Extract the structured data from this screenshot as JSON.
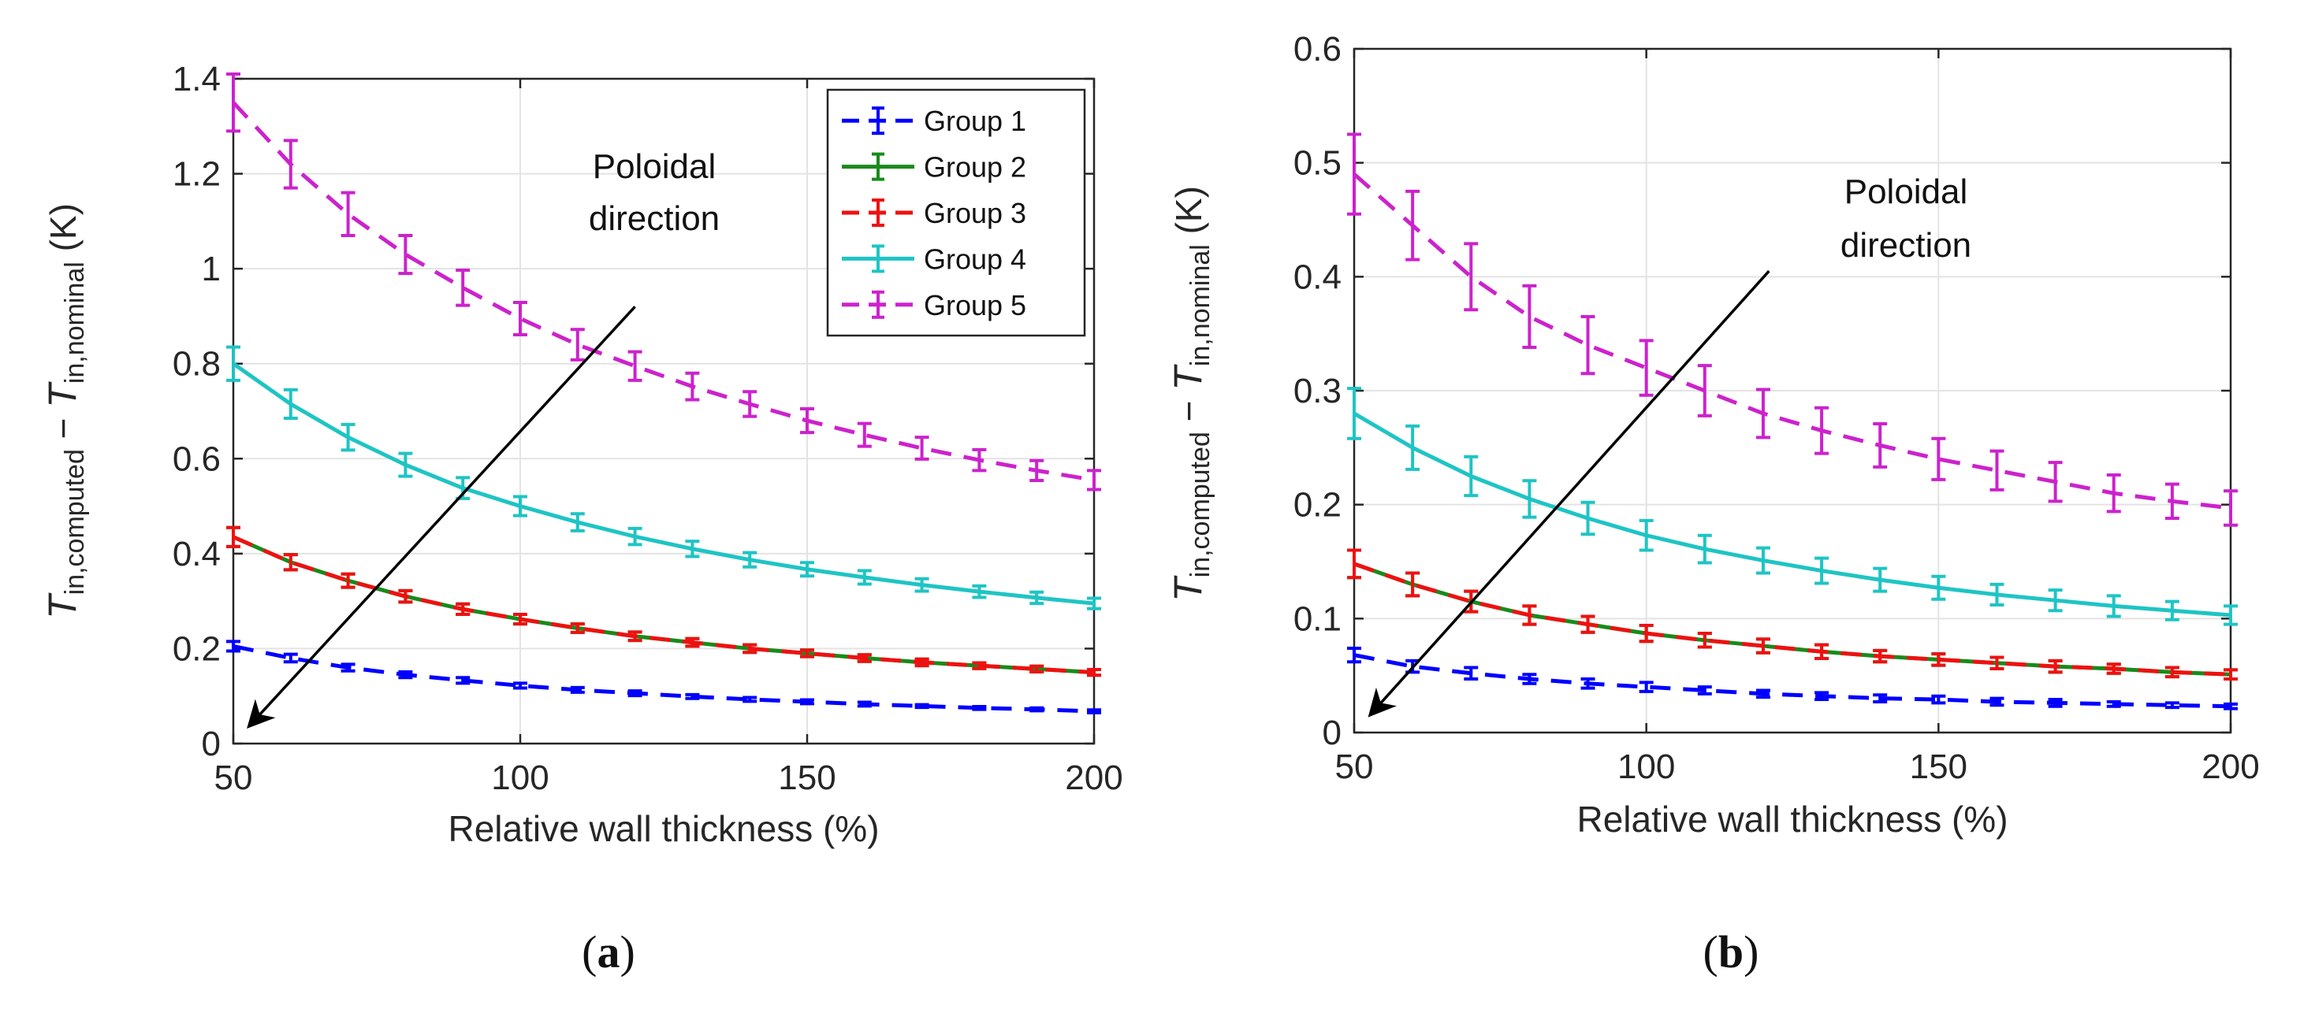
{
  "chart_data": [
    {
      "panel": "a",
      "type": "line",
      "caption_open": "(",
      "caption_letter": "a",
      "caption_close": ")",
      "xlabel": "Relative wall thickness (%)",
      "ylabel": {
        "symbol": "T",
        "sub1": "in,computed",
        "minus": " − ",
        "symbol2": "T",
        "sub2": "in,nominal",
        "unit": " (K)"
      },
      "xlim": [
        50,
        200
      ],
      "ylim": [
        0,
        1.4
      ],
      "xticks": [
        50,
        100,
        150,
        200
      ],
      "xtick_labels": [
        "50",
        "100",
        "150",
        "200"
      ],
      "yticks": [
        0,
        0.2,
        0.4,
        0.6,
        0.8,
        1,
        1.2,
        1.4
      ],
      "ytick_labels": [
        "0",
        "0.2",
        "0.4",
        "0.6",
        "0.8",
        "1",
        "1.2",
        "1.4"
      ],
      "grid": true,
      "legend_position": "top-right",
      "annotation": {
        "line1": "Poloidal",
        "line2": "direction"
      },
      "arrow": {
        "from": [
          120,
          0.92
        ],
        "to": [
          53,
          0.04
        ]
      },
      "x": [
        50,
        60,
        70,
        80,
        90,
        100,
        110,
        120,
        130,
        140,
        150,
        160,
        170,
        180,
        190,
        200
      ],
      "series": [
        {
          "name": "Group 1",
          "color": "#0000ff",
          "dash": true,
          "values": [
            0.205,
            0.18,
            0.16,
            0.145,
            0.133,
            0.122,
            0.113,
            0.106,
            0.099,
            0.093,
            0.088,
            0.083,
            0.079,
            0.075,
            0.072,
            0.068
          ],
          "err": [
            0.01,
            0.008,
            0.007,
            0.006,
            0.006,
            0.005,
            0.005,
            0.005,
            0.004,
            0.004,
            0.004,
            0.004,
            0.003,
            0.003,
            0.003,
            0.003
          ]
        },
        {
          "name": "Group 2",
          "color": "#1a8a1a",
          "dash": false,
          "values": [
            0.435,
            0.382,
            0.343,
            0.31,
            0.283,
            0.262,
            0.243,
            0.226,
            0.213,
            0.2,
            0.19,
            0.18,
            0.171,
            0.164,
            0.157,
            0.15
          ],
          "err": [
            0.02,
            0.016,
            0.014,
            0.012,
            0.011,
            0.01,
            0.009,
            0.009,
            0.008,
            0.008,
            0.007,
            0.007,
            0.007,
            0.006,
            0.006,
            0.006
          ]
        },
        {
          "name": "Group 3",
          "color": "#ee1111",
          "dash": true,
          "values": [
            0.435,
            0.382,
            0.343,
            0.31,
            0.283,
            0.262,
            0.243,
            0.226,
            0.213,
            0.2,
            0.19,
            0.18,
            0.171,
            0.164,
            0.157,
            0.15
          ],
          "err": [
            0.02,
            0.016,
            0.014,
            0.012,
            0.011,
            0.01,
            0.009,
            0.009,
            0.008,
            0.008,
            0.007,
            0.007,
            0.007,
            0.006,
            0.006,
            0.006
          ]
        },
        {
          "name": "Group 4",
          "color": "#1fc4c4",
          "dash": false,
          "values": [
            0.8,
            0.715,
            0.645,
            0.587,
            0.538,
            0.5,
            0.466,
            0.436,
            0.41,
            0.387,
            0.367,
            0.35,
            0.334,
            0.32,
            0.307,
            0.295
          ],
          "err": [
            0.035,
            0.03,
            0.027,
            0.024,
            0.022,
            0.02,
            0.018,
            0.017,
            0.016,
            0.015,
            0.014,
            0.014,
            0.013,
            0.012,
            0.012,
            0.011
          ]
        },
        {
          "name": "Group 5",
          "color": "#cc22cc",
          "dash": true,
          "values": [
            1.35,
            1.22,
            1.115,
            1.03,
            0.96,
            0.895,
            0.84,
            0.795,
            0.752,
            0.715,
            0.68,
            0.65,
            0.622,
            0.597,
            0.575,
            0.555
          ],
          "err": [
            0.06,
            0.05,
            0.045,
            0.04,
            0.037,
            0.034,
            0.032,
            0.03,
            0.028,
            0.026,
            0.025,
            0.024,
            0.023,
            0.022,
            0.021,
            0.02
          ]
        }
      ]
    },
    {
      "panel": "b",
      "type": "line",
      "caption_open": "(",
      "caption_letter": "b",
      "caption_close": ")",
      "xlabel": "Relative wall thickness (%)",
      "ylabel": {
        "symbol": "T",
        "sub1": "in,computed",
        "minus": " − ",
        "symbol2": "T",
        "sub2": "in,nominal",
        "unit": " (K)"
      },
      "xlim": [
        50,
        200
      ],
      "ylim": [
        0,
        0.6
      ],
      "xticks": [
        50,
        100,
        150,
        200
      ],
      "xtick_labels": [
        "50",
        "100",
        "150",
        "200"
      ],
      "yticks": [
        0,
        0.1,
        0.2,
        0.3,
        0.4,
        0.5,
        0.6
      ],
      "ytick_labels": [
        "0",
        "0.1",
        "0.2",
        "0.3",
        "0.4",
        "0.5",
        "0.6"
      ],
      "grid": true,
      "legend_position": "none",
      "annotation": {
        "line1": "Poloidal",
        "line2": "direction"
      },
      "arrow": {
        "from": [
          121,
          0.405
        ],
        "to": [
          53,
          0.017
        ]
      },
      "x": [
        50,
        60,
        70,
        80,
        90,
        100,
        110,
        120,
        130,
        140,
        150,
        160,
        170,
        180,
        190,
        200
      ],
      "series": [
        {
          "name": "Group 1",
          "color": "#0000ff",
          "dash": true,
          "values": [
            0.068,
            0.058,
            0.052,
            0.047,
            0.043,
            0.04,
            0.037,
            0.034,
            0.032,
            0.03,
            0.029,
            0.027,
            0.026,
            0.025,
            0.024,
            0.023
          ],
          "err": [
            0.006,
            0.005,
            0.005,
            0.004,
            0.004,
            0.004,
            0.003,
            0.003,
            0.003,
            0.003,
            0.003,
            0.003,
            0.003,
            0.002,
            0.002,
            0.002
          ]
        },
        {
          "name": "Group 2",
          "color": "#1a8a1a",
          "dash": false,
          "values": [
            0.148,
            0.13,
            0.115,
            0.103,
            0.095,
            0.087,
            0.081,
            0.076,
            0.071,
            0.067,
            0.064,
            0.061,
            0.058,
            0.056,
            0.053,
            0.051
          ],
          "err": [
            0.012,
            0.01,
            0.009,
            0.008,
            0.007,
            0.007,
            0.006,
            0.006,
            0.006,
            0.005,
            0.005,
            0.005,
            0.005,
            0.004,
            0.004,
            0.004
          ]
        },
        {
          "name": "Group 3",
          "color": "#ee1111",
          "dash": true,
          "values": [
            0.148,
            0.13,
            0.115,
            0.103,
            0.095,
            0.087,
            0.081,
            0.076,
            0.071,
            0.067,
            0.064,
            0.061,
            0.058,
            0.056,
            0.053,
            0.051
          ],
          "err": [
            0.012,
            0.01,
            0.009,
            0.008,
            0.007,
            0.007,
            0.006,
            0.006,
            0.006,
            0.005,
            0.005,
            0.005,
            0.005,
            0.004,
            0.004,
            0.004
          ]
        },
        {
          "name": "Group 4",
          "color": "#1fc4c4",
          "dash": false,
          "values": [
            0.28,
            0.25,
            0.225,
            0.205,
            0.188,
            0.173,
            0.161,
            0.151,
            0.142,
            0.134,
            0.127,
            0.121,
            0.116,
            0.111,
            0.107,
            0.103
          ],
          "err": [
            0.022,
            0.019,
            0.017,
            0.016,
            0.014,
            0.013,
            0.012,
            0.011,
            0.011,
            0.01,
            0.01,
            0.009,
            0.009,
            0.009,
            0.008,
            0.008
          ]
        },
        {
          "name": "Group 5",
          "color": "#cc22cc",
          "dash": true,
          "values": [
            0.49,
            0.445,
            0.4,
            0.365,
            0.34,
            0.32,
            0.3,
            0.28,
            0.265,
            0.252,
            0.24,
            0.23,
            0.22,
            0.21,
            0.203,
            0.197
          ],
          "err": [
            0.035,
            0.03,
            0.029,
            0.027,
            0.025,
            0.024,
            0.022,
            0.021,
            0.02,
            0.019,
            0.018,
            0.017,
            0.017,
            0.016,
            0.015,
            0.015
          ]
        }
      ]
    }
  ]
}
